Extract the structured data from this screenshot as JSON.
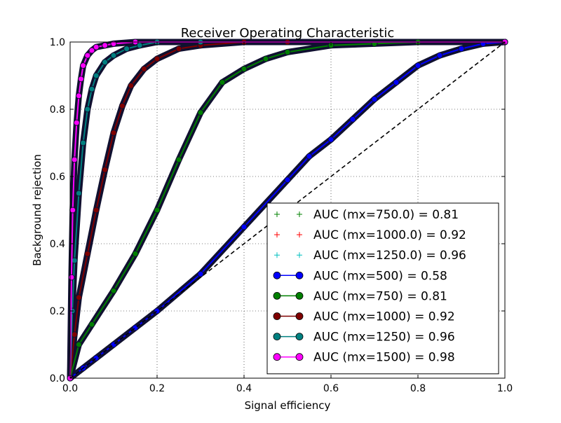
{
  "chart_data": {
    "type": "line",
    "title": "Receiver Operating Characteristic",
    "xlabel": "Signal efficiency",
    "ylabel": "Background rejection",
    "xlim": [
      0,
      1
    ],
    "ylim": [
      0,
      1
    ],
    "xticks": [
      "0.0",
      "0.2",
      "0.4",
      "0.6",
      "0.8",
      "1.0"
    ],
    "yticks": [
      "0.0",
      "0.2",
      "0.4",
      "0.6",
      "0.8",
      "1.0"
    ],
    "grid": true,
    "legend_position": "lower-right",
    "diagonal_reference": true,
    "series": [
      {
        "name": "AUC (mx=750.0) = 0.81",
        "color": "#008000",
        "style": "plus",
        "x": [
          0,
          0.02,
          0.05,
          0.1,
          0.15,
          0.2,
          0.25,
          0.3,
          0.35,
          0.4,
          0.45,
          0.5,
          0.6,
          0.7,
          0.8,
          1.0
        ],
        "y": [
          0,
          0.1,
          0.16,
          0.26,
          0.37,
          0.5,
          0.65,
          0.79,
          0.88,
          0.92,
          0.95,
          0.97,
          0.99,
          0.995,
          1.0,
          1.0
        ]
      },
      {
        "name": "AUC (mx=1000.0) = 0.92",
        "color": "#ff0000",
        "style": "plus",
        "x": [
          0,
          0.01,
          0.02,
          0.04,
          0.06,
          0.08,
          0.1,
          0.12,
          0.14,
          0.17,
          0.2,
          0.25,
          0.3,
          0.4,
          0.5,
          1.0
        ],
        "y": [
          0,
          0.13,
          0.24,
          0.37,
          0.5,
          0.62,
          0.73,
          0.81,
          0.87,
          0.92,
          0.95,
          0.98,
          0.99,
          1.0,
          1.0,
          1.0
        ]
      },
      {
        "name": "AUC (mx=1250.0) = 0.96",
        "color": "#00bfbf",
        "style": "plus",
        "x": [
          0,
          0.005,
          0.01,
          0.02,
          0.03,
          0.04,
          0.05,
          0.06,
          0.08,
          0.1,
          0.13,
          0.16,
          0.2,
          0.3,
          1.0
        ],
        "y": [
          0,
          0.2,
          0.35,
          0.55,
          0.7,
          0.8,
          0.86,
          0.9,
          0.94,
          0.96,
          0.98,
          0.99,
          1.0,
          1.0,
          1.0
        ]
      },
      {
        "name": "AUC (mx=500) = 0.58",
        "color": "#0000ff",
        "style": "line-circle",
        "x": [
          0,
          0.03,
          0.06,
          0.1,
          0.15,
          0.2,
          0.3,
          0.4,
          0.5,
          0.55,
          0.6,
          0.65,
          0.7,
          0.75,
          0.8,
          0.85,
          0.9,
          0.95,
          1.0
        ],
        "y": [
          0,
          0.03,
          0.06,
          0.1,
          0.15,
          0.2,
          0.31,
          0.45,
          0.59,
          0.66,
          0.71,
          0.77,
          0.83,
          0.88,
          0.93,
          0.96,
          0.98,
          0.995,
          1.0
        ]
      },
      {
        "name": "AUC (mx=750) = 0.81",
        "color": "#007f00",
        "style": "line-circle",
        "x": [
          0,
          0.02,
          0.05,
          0.1,
          0.15,
          0.2,
          0.25,
          0.3,
          0.35,
          0.4,
          0.45,
          0.5,
          0.6,
          0.7,
          0.8,
          1.0
        ],
        "y": [
          0,
          0.1,
          0.16,
          0.26,
          0.37,
          0.5,
          0.65,
          0.79,
          0.88,
          0.92,
          0.95,
          0.97,
          0.99,
          0.995,
          1.0,
          1.0
        ]
      },
      {
        "name": "AUC (mx=1000) = 0.92",
        "color": "#7f0000",
        "style": "line-circle",
        "x": [
          0,
          0.01,
          0.02,
          0.04,
          0.06,
          0.08,
          0.1,
          0.12,
          0.14,
          0.17,
          0.2,
          0.25,
          0.3,
          0.4,
          0.5,
          1.0
        ],
        "y": [
          0,
          0.13,
          0.24,
          0.37,
          0.5,
          0.62,
          0.73,
          0.81,
          0.87,
          0.92,
          0.95,
          0.98,
          0.99,
          1.0,
          1.0,
          1.0
        ]
      },
      {
        "name": "AUC (mx=1250) = 0.96",
        "color": "#008080",
        "style": "line-circle",
        "x": [
          0,
          0.005,
          0.01,
          0.02,
          0.03,
          0.04,
          0.05,
          0.06,
          0.08,
          0.1,
          0.13,
          0.16,
          0.2,
          0.3,
          1.0
        ],
        "y": [
          0,
          0.2,
          0.35,
          0.55,
          0.7,
          0.8,
          0.86,
          0.9,
          0.94,
          0.96,
          0.98,
          0.99,
          1.0,
          1.0,
          1.0
        ]
      },
      {
        "name": "AUC (mx=1500) = 0.98",
        "color": "#ff00ff",
        "style": "line-circle",
        "x": [
          0,
          0.003,
          0.006,
          0.01,
          0.015,
          0.02,
          0.025,
          0.03,
          0.04,
          0.05,
          0.06,
          0.08,
          0.1,
          0.15,
          1.0
        ],
        "y": [
          0,
          0.3,
          0.5,
          0.65,
          0.76,
          0.84,
          0.89,
          0.93,
          0.96,
          0.975,
          0.985,
          0.99,
          0.995,
          1.0,
          1.0
        ]
      }
    ]
  }
}
